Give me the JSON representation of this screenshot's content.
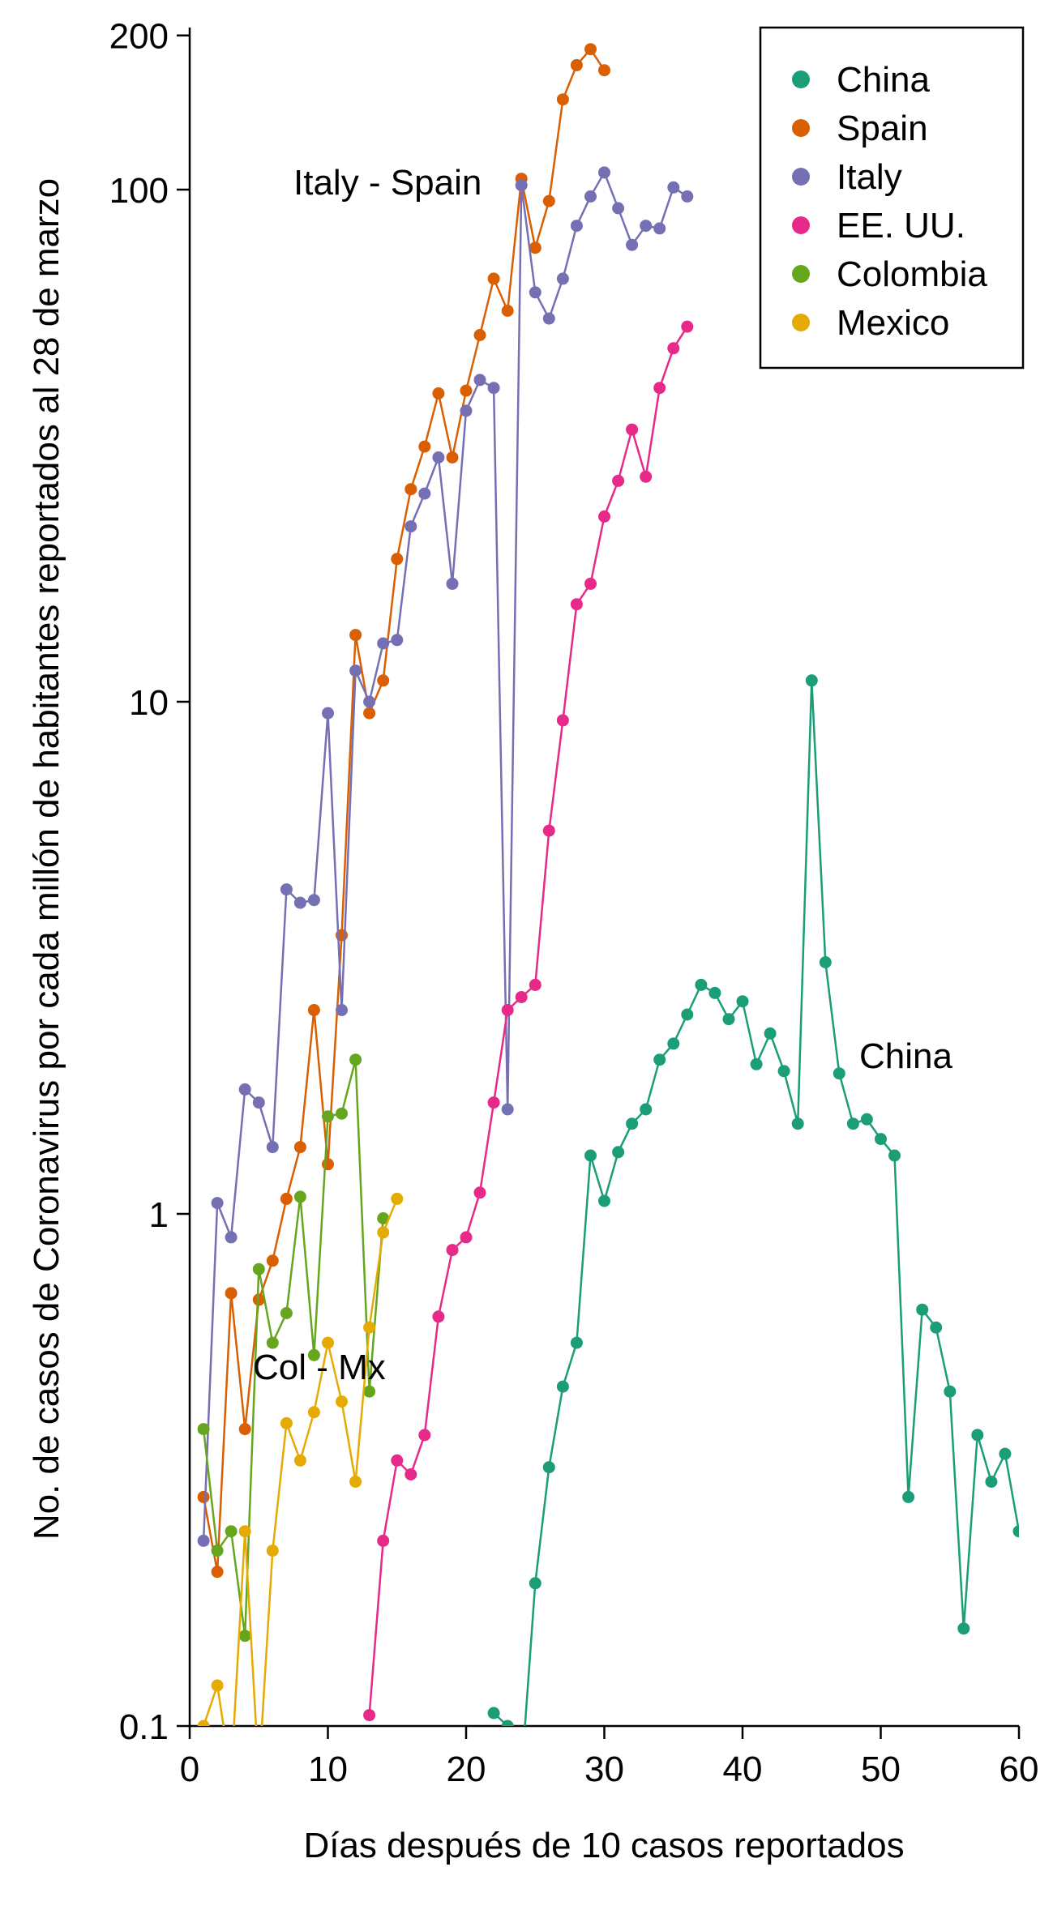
{
  "chart_data": {
    "type": "line",
    "title": "",
    "xlabel": "Días después de 10 casos reportados",
    "ylabel": "No. de casos de Coronavirus por cada millón de habitantes reportados al 28 de marzo",
    "xlim": [
      0,
      60
    ],
    "ylim": [
      0.1,
      200
    ],
    "y_scale": "log",
    "grid": false,
    "legend_position": "top-right",
    "x_ticks": [
      "0",
      "10",
      "20",
      "30",
      "40",
      "50",
      "60"
    ],
    "y_ticks": [
      "0.1",
      "1",
      "10",
      "100",
      "200"
    ],
    "annotations": [
      {
        "text": "Italy - Spain"
      },
      {
        "text": "Col - Mx"
      },
      {
        "text": "China"
      }
    ],
    "series": [
      {
        "name": "China",
        "color": "#1b9e77",
        "x": [
          22,
          23,
          24,
          25,
          26,
          27,
          28,
          29,
          30,
          31,
          32,
          33,
          34,
          35,
          36,
          37,
          38,
          39,
          40,
          41,
          42,
          43,
          44,
          45,
          46,
          47,
          48,
          49,
          50,
          51,
          52,
          53,
          54,
          55,
          56,
          57,
          58,
          59,
          60
        ],
        "y": [
          0.106,
          0.1,
          0.08,
          0.19,
          0.32,
          0.46,
          0.56,
          1.3,
          1.06,
          1.32,
          1.5,
          1.6,
          2.0,
          2.15,
          2.45,
          2.8,
          2.7,
          2.4,
          2.6,
          1.96,
          2.25,
          1.9,
          1.5,
          11.0,
          3.1,
          1.88,
          1.5,
          1.53,
          1.4,
          1.3,
          0.28,
          0.65,
          0.6,
          0.45,
          0.155,
          0.37,
          0.3,
          0.34,
          0.24
        ]
      },
      {
        "name": "Spain",
        "color": "#d95f02",
        "x": [
          1,
          2,
          3,
          4,
          5,
          6,
          7,
          8,
          9,
          10,
          11,
          12,
          13,
          14,
          15,
          16,
          17,
          18,
          19,
          20,
          21,
          22,
          23,
          24,
          25,
          26,
          27,
          28,
          29,
          30
        ],
        "y": [
          0.28,
          0.2,
          0.7,
          0.38,
          0.68,
          0.81,
          1.07,
          1.35,
          2.5,
          1.25,
          3.5,
          13.5,
          9.5,
          11.0,
          19.0,
          26.0,
          31.5,
          40.0,
          30.0,
          40.5,
          52.0,
          67.0,
          58.0,
          105.0,
          77.0,
          95.0,
          150.0,
          175.0,
          188.0,
          171.0
        ]
      },
      {
        "name": "Italy",
        "color": "#7570b3",
        "x": [
          1,
          2,
          3,
          4,
          5,
          6,
          7,
          8,
          9,
          10,
          11,
          12,
          13,
          14,
          15,
          16,
          17,
          18,
          19,
          20,
          21,
          22,
          23,
          24,
          25,
          26,
          27,
          28,
          29,
          30,
          31,
          32,
          33,
          34,
          35,
          36
        ],
        "y": [
          0.23,
          1.05,
          0.9,
          1.75,
          1.65,
          1.35,
          4.3,
          4.05,
          4.1,
          9.5,
          2.5,
          11.5,
          10.0,
          13.0,
          13.2,
          22.0,
          25.5,
          30.0,
          17.0,
          37.0,
          42.5,
          41.0,
          1.6,
          102.0,
          63.0,
          56.0,
          67.0,
          85.0,
          97.0,
          108.0,
          92.0,
          78.0,
          85.0,
          84.0,
          101.0,
          97.0
        ]
      },
      {
        "name": "EE. UU.",
        "color": "#e7298a",
        "x": [
          13,
          14,
          15,
          16,
          17,
          18,
          19,
          20,
          21,
          22,
          23,
          24,
          25,
          26,
          27,
          28,
          29,
          30,
          31,
          32,
          33,
          34,
          35,
          36
        ],
        "y": [
          0.105,
          0.23,
          0.33,
          0.31,
          0.37,
          0.63,
          0.85,
          0.9,
          1.1,
          1.65,
          2.5,
          2.65,
          2.8,
          5.6,
          9.2,
          15.5,
          17.0,
          23.0,
          27.0,
          34.0,
          27.5,
          41.0,
          49.0,
          54.0
        ]
      },
      {
        "name": "Colombia",
        "color": "#66a61e",
        "x": [
          1,
          2,
          3,
          4,
          5,
          6,
          7,
          8,
          9,
          10,
          11,
          12,
          13,
          14
        ],
        "y": [
          0.38,
          0.22,
          0.24,
          0.15,
          0.78,
          0.56,
          0.64,
          1.08,
          0.53,
          1.55,
          1.57,
          2.0,
          0.45,
          0.98
        ]
      },
      {
        "name": "Mexico",
        "color": "#e6ab02",
        "x": [
          1,
          2,
          3,
          4,
          5,
          6,
          7,
          8,
          9,
          10,
          11,
          12,
          13,
          14,
          15
        ],
        "y": [
          0.1,
          0.12,
          0.08,
          0.24,
          0.08,
          0.22,
          0.39,
          0.33,
          0.41,
          0.56,
          0.43,
          0.3,
          0.6,
          0.92,
          1.07
        ]
      }
    ]
  }
}
